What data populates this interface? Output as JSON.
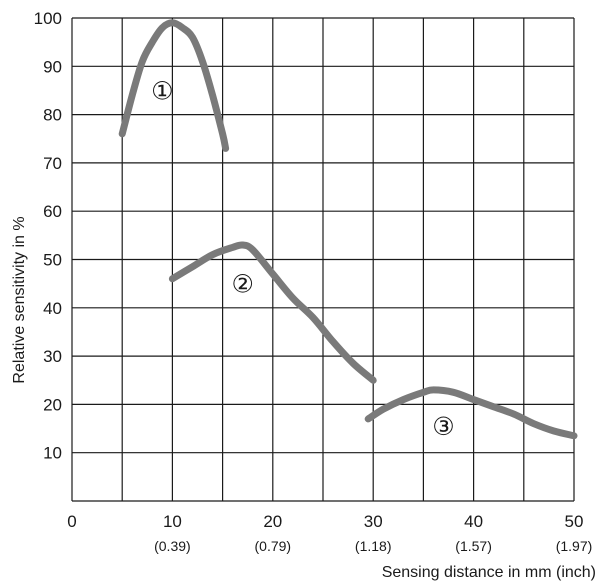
{
  "chart_data": {
    "type": "line",
    "title": "",
    "xlabel": "Sensing distance in mm (inch)",
    "ylabel": "Relative sensitivity in %",
    "xlim": [
      0,
      50
    ],
    "ylim": [
      0,
      100
    ],
    "grid": true,
    "legend": "none",
    "x_ticks": [
      {
        "value": 0,
        "label": "0",
        "sub": ""
      },
      {
        "value": 10,
        "label": "10",
        "sub": "(0.39)"
      },
      {
        "value": 20,
        "label": "20",
        "sub": "(0.79)"
      },
      {
        "value": 30,
        "label": "30",
        "sub": "(1.18)"
      },
      {
        "value": 40,
        "label": "40",
        "sub": "(1.57)"
      },
      {
        "value": 50,
        "label": "50",
        "sub": "(1.97)"
      }
    ],
    "y_ticks": [
      10,
      20,
      30,
      40,
      50,
      60,
      70,
      80,
      90,
      100
    ],
    "series": [
      {
        "label": "①",
        "label_at": [
          9,
          85
        ],
        "points": [
          [
            5,
            76
          ],
          [
            6,
            84
          ],
          [
            7,
            91
          ],
          [
            8,
            95
          ],
          [
            9,
            98
          ],
          [
            10,
            99
          ],
          [
            11,
            98
          ],
          [
            12,
            96
          ],
          [
            13,
            91
          ],
          [
            14,
            84
          ],
          [
            15,
            76
          ],
          [
            15.3,
            73
          ]
        ]
      },
      {
        "label": "②",
        "label_at": [
          17,
          45
        ],
        "points": [
          [
            10,
            46
          ],
          [
            12,
            48.5
          ],
          [
            14,
            51
          ],
          [
            16,
            52.5
          ],
          [
            17,
            53
          ],
          [
            18,
            52
          ],
          [
            20,
            47
          ],
          [
            22,
            42
          ],
          [
            24,
            38
          ],
          [
            26,
            33
          ],
          [
            28,
            28.5
          ],
          [
            30,
            25
          ]
        ]
      },
      {
        "label": "③",
        "label_at": [
          37,
          15.5
        ],
        "points": [
          [
            29.5,
            17
          ],
          [
            31,
            19
          ],
          [
            33,
            21
          ],
          [
            35,
            22.5
          ],
          [
            36,
            23
          ],
          [
            38,
            22.5
          ],
          [
            40,
            21
          ],
          [
            42,
            19.5
          ],
          [
            44,
            18
          ],
          [
            46,
            16
          ],
          [
            48,
            14.5
          ],
          [
            50,
            13.5
          ]
        ]
      }
    ],
    "line_color": "#7a7a7a",
    "grid_color": "#1a1a1a"
  }
}
